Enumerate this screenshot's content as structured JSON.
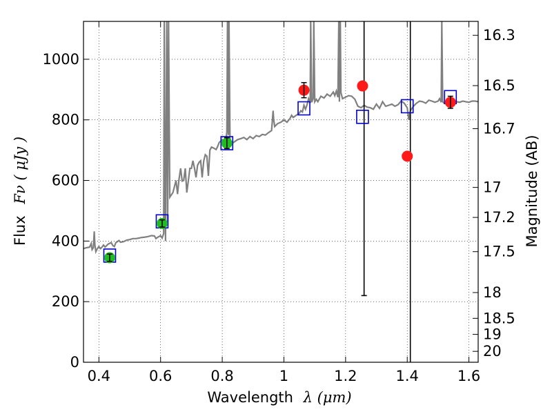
{
  "chart_data": {
    "type": "scatter",
    "title": "",
    "xlabel": "Wavelength",
    "xlabel_math": "λ (μm)",
    "ylabel": "Flux",
    "ylabel_math": "Fν ( μJy )",
    "y2label": "Magnitude (AB)",
    "xlim": [
      0.35,
      1.63
    ],
    "ylim": [
      0,
      1125
    ],
    "grid": true,
    "x_ticks": [
      {
        "value": 0.4,
        "label": "0.4"
      },
      {
        "value": 0.6,
        "label": "0.6"
      },
      {
        "value": 0.8,
        "label": "0.8"
      },
      {
        "value": 1.0,
        "label": "1"
      },
      {
        "value": 1.2,
        "label": "1.2"
      },
      {
        "value": 1.4,
        "label": "1.4"
      },
      {
        "value": 1.6,
        "label": "1.6"
      }
    ],
    "y_ticks": [
      {
        "value": 0,
        "label": "0"
      },
      {
        "value": 200,
        "label": "200"
      },
      {
        "value": 400,
        "label": "400"
      },
      {
        "value": 600,
        "label": "600"
      },
      {
        "value": 800,
        "label": "800"
      },
      {
        "value": 1000,
        "label": "1000"
      }
    ],
    "magnitude_ticks": [
      {
        "flux": 1079,
        "label": "16.3"
      },
      {
        "flux": 913,
        "label": "16.5"
      },
      {
        "flux": 771,
        "label": "16.7"
      },
      {
        "flux": 577,
        "label": "17"
      },
      {
        "flux": 478,
        "label": "17.2"
      },
      {
        "flux": 365,
        "label": "17.5"
      },
      {
        "flux": 230,
        "label": "18"
      },
      {
        "flux": 145,
        "label": "18.5"
      },
      {
        "flux": 92,
        "label": "19"
      },
      {
        "flux": 36,
        "label": "20"
      }
    ],
    "model_spectrum": {
      "color": "#808080",
      "points": [
        [
          0.35,
          375
        ],
        [
          0.36,
          378
        ],
        [
          0.37,
          380
        ],
        [
          0.375,
          392
        ],
        [
          0.378,
          372
        ],
        [
          0.382,
          378
        ],
        [
          0.385,
          432
        ],
        [
          0.387,
          388
        ],
        [
          0.39,
          365
        ],
        [
          0.395,
          375
        ],
        [
          0.4,
          382
        ],
        [
          0.405,
          375
        ],
        [
          0.41,
          380
        ],
        [
          0.415,
          387
        ],
        [
          0.42,
          380
        ],
        [
          0.43,
          390
        ],
        [
          0.44,
          395
        ],
        [
          0.445,
          385
        ],
        [
          0.45,
          382
        ],
        [
          0.455,
          395
        ],
        [
          0.46,
          398
        ],
        [
          0.465,
          402
        ],
        [
          0.47,
          396
        ],
        [
          0.48,
          398
        ],
        [
          0.49,
          403
        ],
        [
          0.5,
          405
        ],
        [
          0.51,
          408
        ],
        [
          0.52,
          408
        ],
        [
          0.53,
          410
        ],
        [
          0.54,
          412
        ],
        [
          0.55,
          413
        ],
        [
          0.56,
          415
        ],
        [
          0.57,
          418
        ],
        [
          0.58,
          417
        ],
        [
          0.585,
          408
        ],
        [
          0.59,
          412
        ],
        [
          0.6,
          418
        ],
        [
          0.605,
          410
        ],
        [
          0.61,
          425
        ],
        [
          0.612,
          1125
        ],
        [
          0.614,
          560
        ],
        [
          0.616,
          400
        ],
        [
          0.62,
          1125
        ],
        [
          0.623,
          450
        ],
        [
          0.626,
          1125
        ],
        [
          0.63,
          545
        ],
        [
          0.64,
          560
        ],
        [
          0.65,
          600
        ],
        [
          0.655,
          555
        ],
        [
          0.66,
          605
        ],
        [
          0.665,
          640
        ],
        [
          0.67,
          598
        ],
        [
          0.675,
          600
        ],
        [
          0.68,
          640
        ],
        [
          0.685,
          560
        ],
        [
          0.69,
          598
        ],
        [
          0.695,
          640
        ],
        [
          0.7,
          640
        ],
        [
          0.705,
          665
        ],
        [
          0.71,
          640
        ],
        [
          0.715,
          610
        ],
        [
          0.72,
          650
        ],
        [
          0.725,
          660
        ],
        [
          0.73,
          665
        ],
        [
          0.735,
          610
        ],
        [
          0.74,
          665
        ],
        [
          0.745,
          685
        ],
        [
          0.75,
          680
        ],
        [
          0.755,
          615
        ],
        [
          0.76,
          700
        ],
        [
          0.765,
          710
        ],
        [
          0.77,
          708
        ],
        [
          0.78,
          702
        ],
        [
          0.785,
          712
        ],
        [
          0.79,
          725
        ],
        [
          0.8,
          735
        ],
        [
          0.81,
          720
        ],
        [
          0.815,
          760
        ],
        [
          0.817,
          1125
        ],
        [
          0.82,
          750
        ],
        [
          0.822,
          1125
        ],
        [
          0.825,
          740
        ],
        [
          0.83,
          720
        ],
        [
          0.84,
          728
        ],
        [
          0.85,
          735
        ],
        [
          0.86,
          738
        ],
        [
          0.87,
          742
        ],
        [
          0.88,
          735
        ],
        [
          0.89,
          745
        ],
        [
          0.9,
          738
        ],
        [
          0.91,
          748
        ],
        [
          0.92,
          745
        ],
        [
          0.93,
          752
        ],
        [
          0.94,
          750
        ],
        [
          0.95,
          758
        ],
        [
          0.96,
          765
        ],
        [
          0.965,
          830
        ],
        [
          0.967,
          800
        ],
        [
          0.97,
          778
        ],
        [
          0.98,
          788
        ],
        [
          0.99,
          792
        ],
        [
          1.0,
          800
        ],
        [
          1.01,
          792
        ],
        [
          1.02,
          805
        ],
        [
          1.025,
          815
        ],
        [
          1.03,
          808
        ],
        [
          1.04,
          815
        ],
        [
          1.05,
          822
        ],
        [
          1.055,
          830
        ],
        [
          1.06,
          826
        ],
        [
          1.065,
          848
        ],
        [
          1.07,
          835
        ],
        [
          1.075,
          850
        ],
        [
          1.08,
          870
        ],
        [
          1.085,
          855
        ],
        [
          1.087,
          1125
        ],
        [
          1.09,
          858
        ],
        [
          1.095,
          870
        ],
        [
          1.097,
          1125
        ],
        [
          1.1,
          860
        ],
        [
          1.105,
          868
        ],
        [
          1.11,
          860
        ],
        [
          1.12,
          878
        ],
        [
          1.13,
          872
        ],
        [
          1.14,
          885
        ],
        [
          1.15,
          878
        ],
        [
          1.16,
          892
        ],
        [
          1.165,
          880
        ],
        [
          1.17,
          895
        ],
        [
          1.175,
          875
        ],
        [
          1.178,
          1125
        ],
        [
          1.18,
          860
        ],
        [
          1.183,
          1125
        ],
        [
          1.185,
          890
        ],
        [
          1.19,
          870
        ],
        [
          1.2,
          875
        ],
        [
          1.21,
          880
        ],
        [
          1.22,
          878
        ],
        [
          1.23,
          868
        ],
        [
          1.24,
          845
        ],
        [
          1.25,
          840
        ],
        [
          1.26,
          848
        ],
        [
          1.27,
          842
        ],
        [
          1.28,
          840
        ],
        [
          1.29,
          835
        ],
        [
          1.3,
          852
        ],
        [
          1.31,
          838
        ],
        [
          1.32,
          860
        ],
        [
          1.33,
          845
        ],
        [
          1.34,
          848
        ],
        [
          1.35,
          852
        ],
        [
          1.36,
          845
        ],
        [
          1.37,
          850
        ],
        [
          1.38,
          862
        ],
        [
          1.39,
          855
        ],
        [
          1.4,
          840
        ],
        [
          1.405,
          800
        ],
        [
          1.41,
          830
        ],
        [
          1.42,
          845
        ],
        [
          1.43,
          855
        ],
        [
          1.44,
          862
        ],
        [
          1.45,
          860
        ],
        [
          1.46,
          855
        ],
        [
          1.47,
          865
        ],
        [
          1.48,
          862
        ],
        [
          1.49,
          858
        ],
        [
          1.5,
          862
        ],
        [
          1.505,
          870
        ],
        [
          1.51,
          858
        ],
        [
          1.512,
          1125
        ],
        [
          1.515,
          860
        ],
        [
          1.52,
          855
        ],
        [
          1.53,
          858
        ],
        [
          1.54,
          862
        ],
        [
          1.55,
          855
        ],
        [
          1.56,
          860
        ],
        [
          1.57,
          858
        ],
        [
          1.58,
          862
        ],
        [
          1.59,
          860
        ],
        [
          1.6,
          858
        ],
        [
          1.61,
          862
        ],
        [
          1.62,
          862
        ],
        [
          1.63,
          860
        ]
      ]
    },
    "series": [
      {
        "marker": "square",
        "color": "#0000cc",
        "points": [
          [
            0.435,
            352
          ],
          [
            0.605,
            465
          ],
          [
            0.815,
            723
          ],
          [
            1.065,
            838
          ],
          [
            1.255,
            810
          ],
          [
            1.4,
            845
          ],
          [
            1.54,
            875
          ]
        ]
      },
      {
        "marker": "circle",
        "color": "#22bb22",
        "points": [
          {
            "x": 0.435,
            "y": 345,
            "err": 12
          },
          {
            "x": 0.605,
            "y": 458,
            "err": 12
          },
          {
            "x": 0.815,
            "y": 723,
            "err": 18
          }
        ]
      },
      {
        "marker": "circle",
        "color": "#ff1a1a",
        "points": [
          {
            "x": 1.065,
            "y": 898,
            "err": 25
          },
          {
            "x": 1.255,
            "y": 912,
            "err": 0
          },
          {
            "x": 1.4,
            "y": 680,
            "err": 0
          },
          {
            "x": 1.54,
            "y": 858,
            "err": 20
          }
        ]
      }
    ],
    "error_bars_vertical": [
      {
        "x": 1.26,
        "ymin": 220,
        "ymax": 1125
      },
      {
        "x": 1.41,
        "ymin": 0,
        "ymax": 1125
      }
    ]
  }
}
